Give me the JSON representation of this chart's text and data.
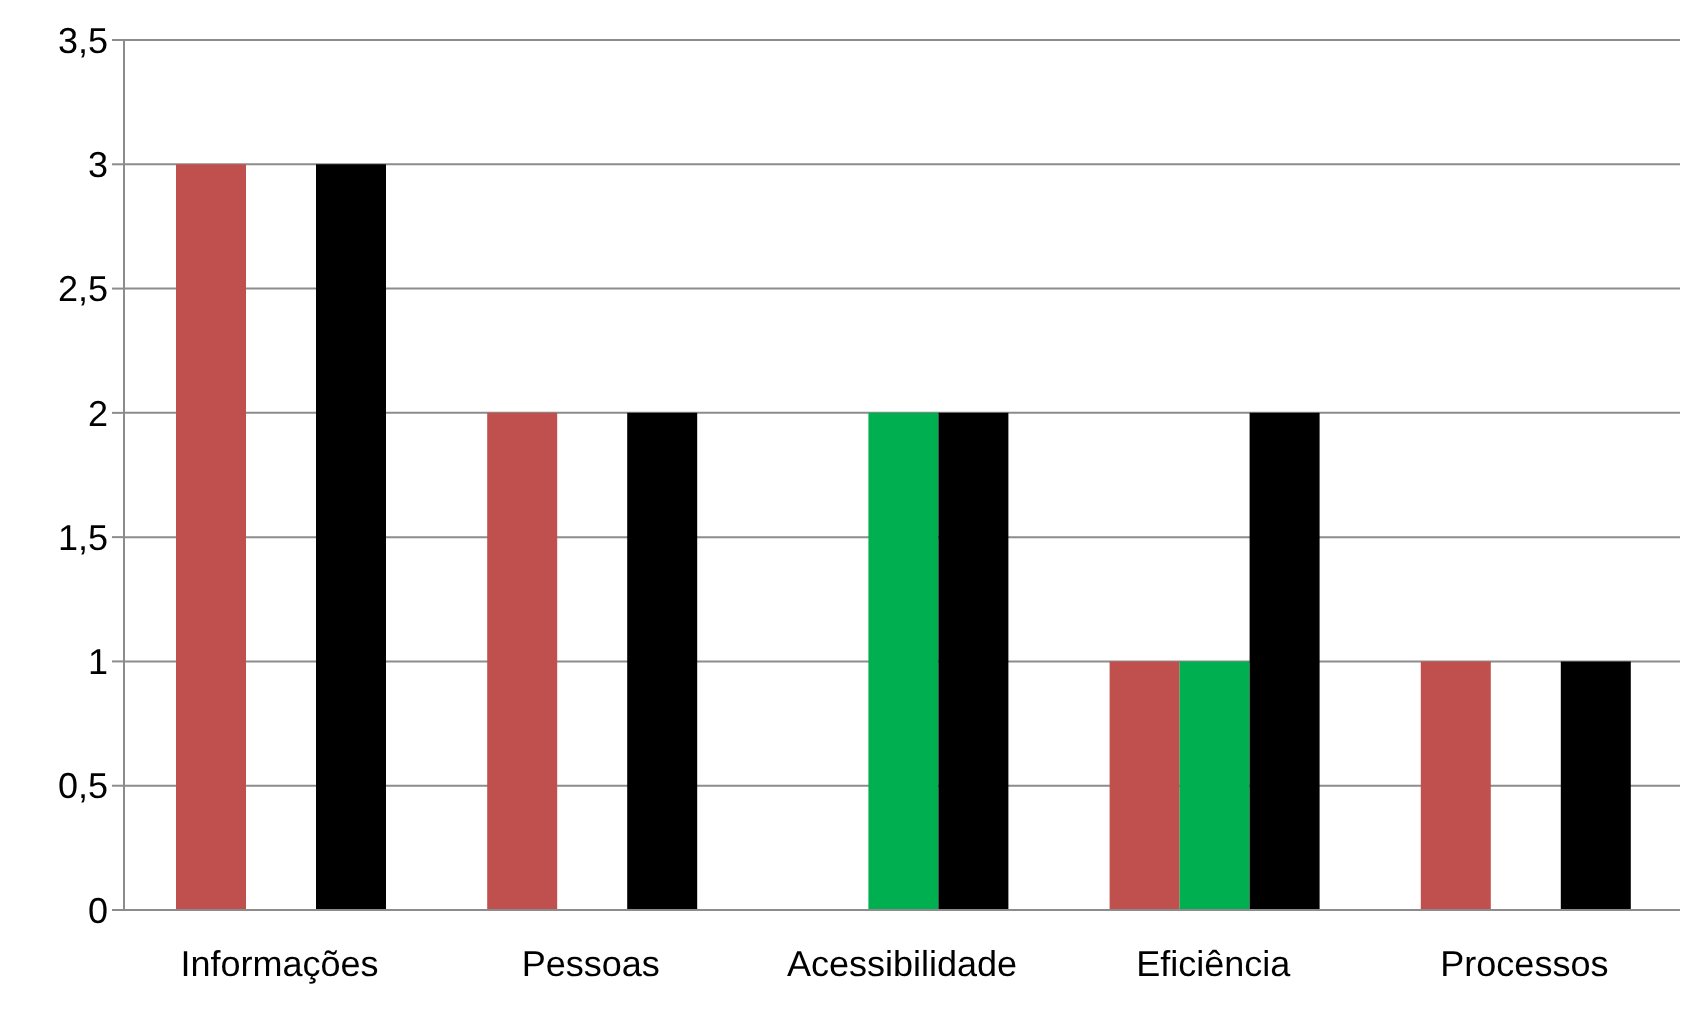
{
  "chart_data": {
    "type": "bar",
    "categories": [
      "Informações",
      "Pessoas",
      "Acessibilidade",
      "Eficiência",
      "Processos"
    ],
    "series": [
      {
        "color": "#c0504d",
        "values": [
          3,
          2,
          null,
          1,
          1
        ]
      },
      {
        "color": "#00b050",
        "values": [
          null,
          null,
          2,
          1,
          null
        ]
      },
      {
        "color": "#000000",
        "values": [
          3,
          2,
          2,
          2,
          1
        ]
      }
    ],
    "ylim": [
      0,
      3.5
    ],
    "yticks": [
      0,
      {
        "value": 0.5,
        "label": "0,5"
      },
      1,
      {
        "value": 1.5,
        "label": "1,5"
      },
      2,
      {
        "value": 2.5,
        "label": "2,5"
      },
      3,
      {
        "value": 3.5,
        "label": "3,5"
      }
    ],
    "grid": "y",
    "legend": false
  }
}
